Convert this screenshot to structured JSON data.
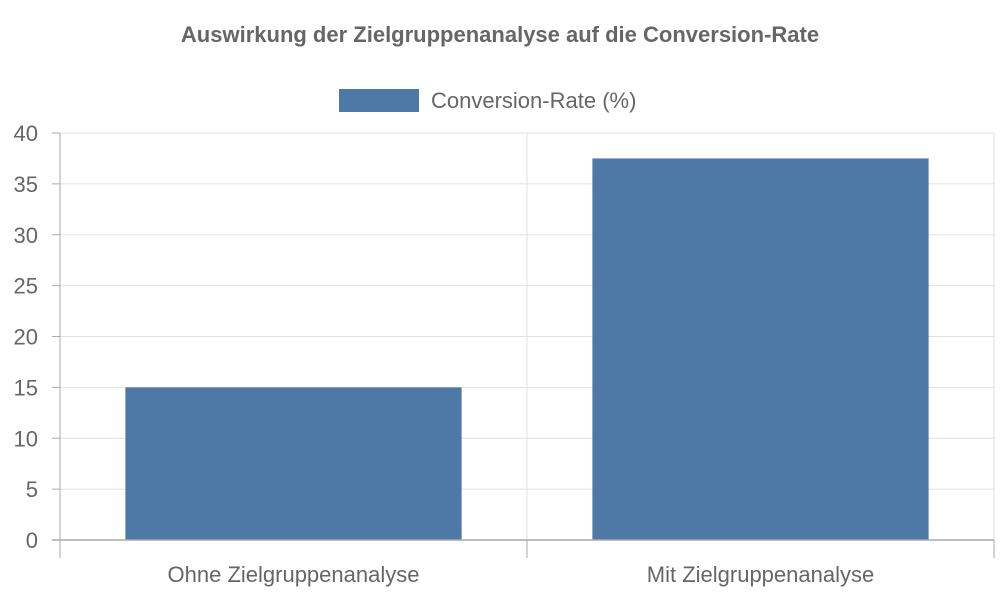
{
  "chart_data": {
    "type": "bar",
    "title": "Auswirkung der Zielgruppenanalyse auf die Conversion-Rate",
    "categories": [
      "Ohne Zielgruppenanalyse",
      "Mit Zielgruppenanalyse"
    ],
    "series": [
      {
        "name": "Conversion-Rate (%)",
        "values": [
          15,
          37.5
        ],
        "color": "#4e79a7"
      }
    ],
    "xlabel": "",
    "ylabel": "",
    "ylim": [
      0,
      40
    ],
    "yticks": [
      "0",
      "5",
      "10",
      "15",
      "20",
      "25",
      "30",
      "35",
      "40"
    ],
    "grid": true,
    "legend_position": "top-center"
  },
  "colors": {
    "bar": "#4e79a7",
    "grid": "#e0e0e0",
    "axis": "#aaaaaa",
    "text": "#666666"
  }
}
